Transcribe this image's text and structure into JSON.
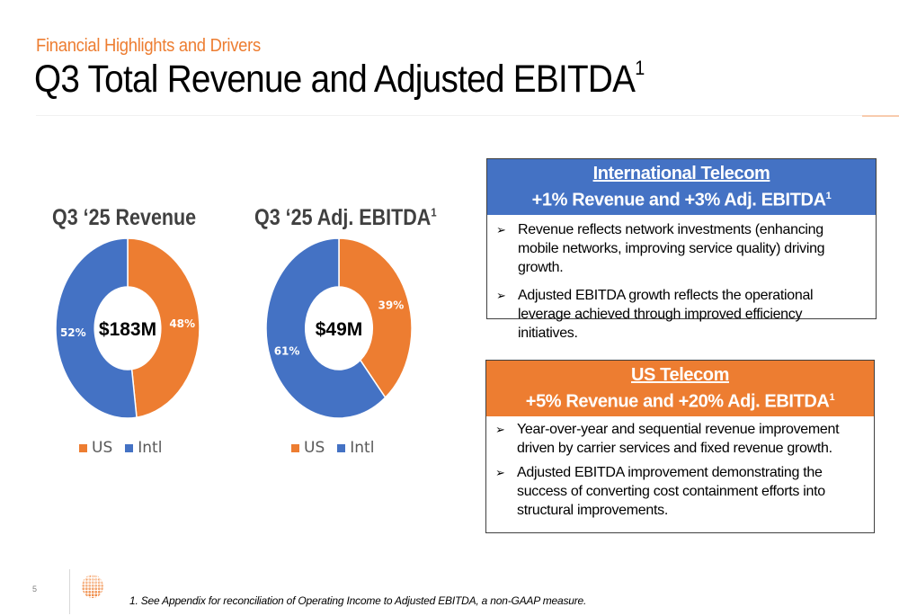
{
  "header": {
    "subtitle": "Financial Highlights and Drivers",
    "title": "Q3 Total Revenue and Adjusted EBITDA",
    "title_sup": "1"
  },
  "colors": {
    "accent": "#ED7D31",
    "us": "#ED7D31",
    "intl": "#4472C4",
    "intl_header": "#4472C4",
    "us_header": "#ED7D31"
  },
  "chart_data": [
    {
      "type": "pie",
      "title": "Q3 ‘25 Revenue",
      "title_sup": "",
      "center_label": "$183M",
      "categories": [
        "US",
        "Intl"
      ],
      "values": [
        48,
        52
      ],
      "labels": [
        "48%",
        "52%"
      ],
      "legend": [
        "US",
        "Intl"
      ],
      "legend_position": "bottom"
    },
    {
      "type": "pie",
      "title": "Q3 ‘25 Adj. EBITDA",
      "title_sup": "1",
      "center_label": "$49M",
      "categories": [
        "US",
        "Intl"
      ],
      "values": [
        39,
        61
      ],
      "labels": [
        "39%",
        "61%"
      ],
      "legend": [
        "US",
        "Intl"
      ],
      "legend_position": "bottom"
    }
  ],
  "boxes": {
    "intl": {
      "title": "International Telecom",
      "subtitle": "+1% Revenue and +3% Adj. EBITDA",
      "sup": "1",
      "bullets": [
        "Revenue reflects network investments (enhancing mobile networks, improving service quality) driving growth.",
        "Adjusted EBITDA growth reflects the operational leverage achieved through improved efficiency initiatives."
      ]
    },
    "us": {
      "title": "US Telecom",
      "subtitle": "+5% Revenue and +20% Adj. EBITDA",
      "sup": "1",
      "bullets": [
        "Year-over-year and sequential revenue improvement driven by carrier services and fixed revenue growth.",
        "Adjusted EBITDA improvement demonstrating the success of converting cost containment efforts into structural improvements."
      ]
    },
    "bullet_glyph": "➢"
  },
  "footer": {
    "page_number": "5",
    "footnote": "1. See Appendix for reconciliation of Operating Income to Adjusted EBITDA, a non-GAAP measure."
  }
}
